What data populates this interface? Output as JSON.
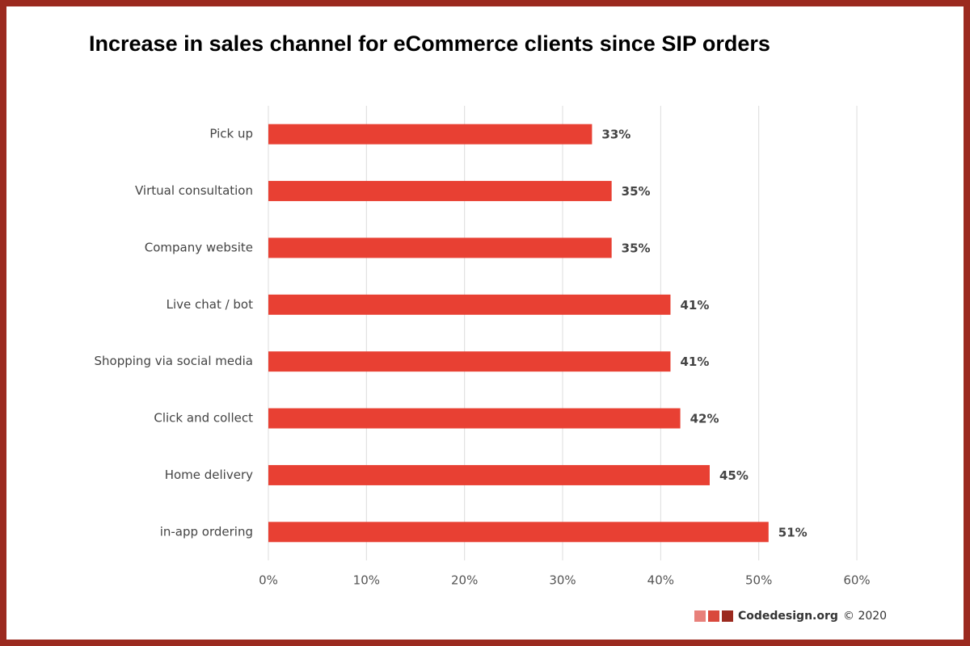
{
  "chart_data": {
    "type": "bar",
    "orientation": "horizontal",
    "title": "Increase in sales channel for eCommerce clients since SIP orders",
    "categories": [
      "Pick up",
      "Virtual consultation",
      "Company website",
      "Live chat / bot",
      "Shopping via social media",
      "Click and collect",
      "Home delivery",
      "in-app ordering"
    ],
    "values": [
      33,
      35,
      35,
      41,
      41,
      42,
      45,
      51
    ],
    "value_labels": [
      "33%",
      "35%",
      "35%",
      "41%",
      "41%",
      "42%",
      "45%",
      "51%"
    ],
    "color": "#e84033",
    "xlim": [
      0,
      60
    ],
    "xticks": [
      {
        "value": 0,
        "label": "0%"
      },
      {
        "value": 10,
        "label": "10%"
      },
      {
        "value": 20,
        "label": "20%"
      },
      {
        "value": 30,
        "label": "30%"
      },
      {
        "value": 40,
        "label": "40%"
      },
      {
        "value": 50,
        "label": "50%"
      },
      {
        "value": 60,
        "label": "60%"
      }
    ],
    "grid": true,
    "source": "Codedesign.org",
    "copyright": "© 2020"
  }
}
